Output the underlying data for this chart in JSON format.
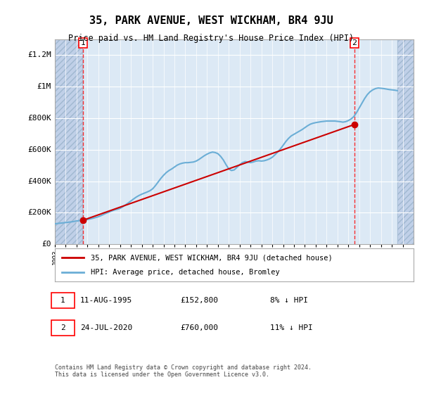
{
  "title": "35, PARK AVENUE, WEST WICKHAM, BR4 9JU",
  "subtitle": "Price paid vs. HM Land Registry's House Price Index (HPI)",
  "ylabel": "",
  "ylim": [
    0,
    1300000
  ],
  "yticks": [
    0,
    200000,
    400000,
    600000,
    800000,
    1000000,
    1200000
  ],
  "ytick_labels": [
    "£0",
    "£200K",
    "£400K",
    "£600K",
    "£800K",
    "£1M",
    "£1.2M"
  ],
  "background_color": "#ffffff",
  "plot_bg_color": "#dce9f5",
  "hatch_color": "#c0d0e8",
  "grid_color": "#ffffff",
  "line1_color": "#cc0000",
  "line2_color": "#6baed6",
  "marker1_color": "#cc0000",
  "annotation1_label": "1",
  "annotation2_label": "2",
  "annotation1_year": 1995.6,
  "annotation2_year": 2020.55,
  "annotation1_value": 152800,
  "annotation2_value": 760000,
  "legend1": "35, PARK AVENUE, WEST WICKHAM, BR4 9JU (detached house)",
  "legend2": "HPI: Average price, detached house, Bromley",
  "note1_label": "1",
  "note1_date": "11-AUG-1995",
  "note1_price": "£152,800",
  "note1_hpi": "8% ↓ HPI",
  "note2_label": "2",
  "note2_date": "24-JUL-2020",
  "note2_price": "£760,000",
  "note2_hpi": "11% ↓ HPI",
  "footer": "Contains HM Land Registry data © Crown copyright and database right 2024.\nThis data is licensed under the Open Government Licence v3.0.",
  "xmin": 1993,
  "xmax": 2026,
  "hpi_data": {
    "years": [
      1993.0,
      1993.25,
      1993.5,
      1993.75,
      1994.0,
      1994.25,
      1994.5,
      1994.75,
      1995.0,
      1995.25,
      1995.5,
      1995.75,
      1996.0,
      1996.25,
      1996.5,
      1996.75,
      1997.0,
      1997.25,
      1997.5,
      1997.75,
      1998.0,
      1998.25,
      1998.5,
      1998.75,
      1999.0,
      1999.25,
      1999.5,
      1999.75,
      2000.0,
      2000.25,
      2000.5,
      2000.75,
      2001.0,
      2001.25,
      2001.5,
      2001.75,
      2002.0,
      2002.25,
      2002.5,
      2002.75,
      2003.0,
      2003.25,
      2003.5,
      2003.75,
      2004.0,
      2004.25,
      2004.5,
      2004.75,
      2005.0,
      2005.25,
      2005.5,
      2005.75,
      2006.0,
      2006.25,
      2006.5,
      2006.75,
      2007.0,
      2007.25,
      2007.5,
      2007.75,
      2008.0,
      2008.25,
      2008.5,
      2008.75,
      2009.0,
      2009.25,
      2009.5,
      2009.75,
      2010.0,
      2010.25,
      2010.5,
      2010.75,
      2011.0,
      2011.25,
      2011.5,
      2011.75,
      2012.0,
      2012.25,
      2012.5,
      2012.75,
      2013.0,
      2013.25,
      2013.5,
      2013.75,
      2014.0,
      2014.25,
      2014.5,
      2014.75,
      2015.0,
      2015.25,
      2015.5,
      2015.75,
      2016.0,
      2016.25,
      2016.5,
      2016.75,
      2017.0,
      2017.25,
      2017.5,
      2017.75,
      2018.0,
      2018.25,
      2018.5,
      2018.75,
      2019.0,
      2019.25,
      2019.5,
      2019.75,
      2020.0,
      2020.25,
      2020.5,
      2020.75,
      2021.0,
      2021.25,
      2021.5,
      2021.75,
      2022.0,
      2022.25,
      2022.5,
      2022.75,
      2023.0,
      2023.25,
      2023.5,
      2023.75,
      2024.0,
      2024.25,
      2024.5
    ],
    "values": [
      130000,
      132000,
      134000,
      136000,
      138000,
      140000,
      142000,
      145000,
      148000,
      150000,
      152000,
      154000,
      157000,
      161000,
      165000,
      170000,
      175000,
      182000,
      190000,
      198000,
      205000,
      212000,
      218000,
      222000,
      228000,
      238000,
      250000,
      262000,
      275000,
      288000,
      300000,
      310000,
      318000,
      325000,
      332000,
      340000,
      352000,
      372000,
      395000,
      418000,
      438000,
      455000,
      468000,
      478000,
      490000,
      502000,
      510000,
      515000,
      518000,
      518000,
      520000,
      522000,
      528000,
      538000,
      550000,
      562000,
      572000,
      580000,
      585000,
      582000,
      575000,
      558000,
      535000,
      505000,
      478000,
      468000,
      472000,
      488000,
      505000,
      518000,
      525000,
      522000,
      518000,
      522000,
      528000,
      530000,
      528000,
      530000,
      535000,
      542000,
      552000,
      568000,
      585000,
      605000,
      628000,
      652000,
      672000,
      688000,
      698000,
      708000,
      718000,
      728000,
      740000,
      752000,
      762000,
      768000,
      772000,
      775000,
      778000,
      780000,
      782000,
      782000,
      782000,
      782000,
      780000,
      778000,
      775000,
      778000,
      785000,
      795000,
      810000,
      835000,
      865000,
      895000,
      925000,
      950000,
      968000,
      980000,
      988000,
      992000,
      990000,
      988000,
      985000,
      982000,
      980000,
      978000,
      975000
    ]
  },
  "sale_data": {
    "years": [
      1995.6,
      2020.55
    ],
    "values": [
      152800,
      760000
    ]
  }
}
